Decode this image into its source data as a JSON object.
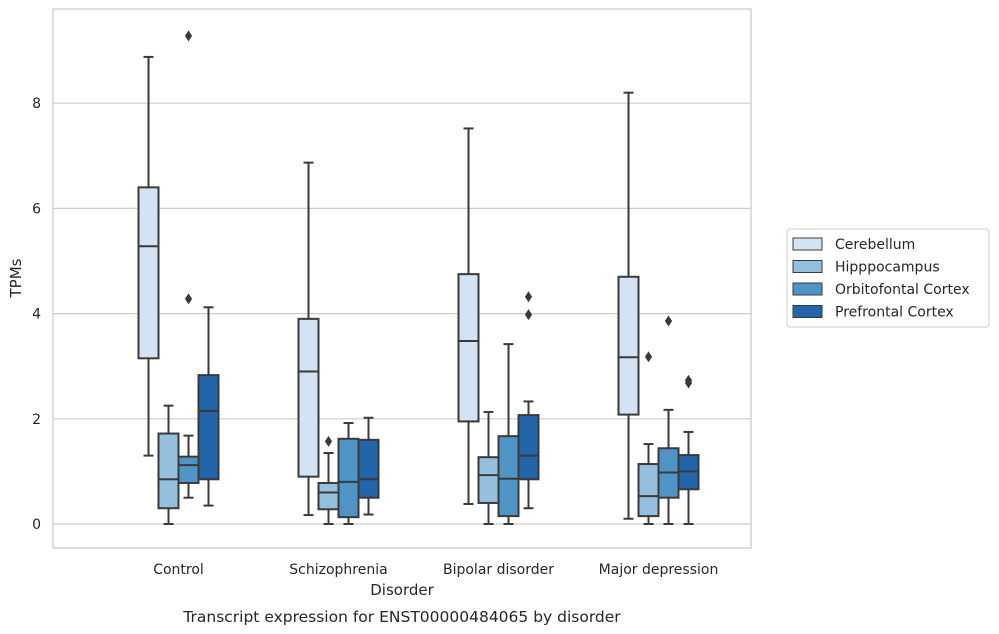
{
  "chart_data": {
    "type": "box",
    "title": "Transcript expression for ENST00000484065 by disorder",
    "xlabel": "Disorder",
    "ylabel": "TPMs",
    "ylim": [
      -0.45,
      9.8
    ],
    "yticks": [
      0,
      2,
      4,
      6,
      8
    ],
    "grid": "horizontal",
    "legend_position": "right",
    "categories": [
      "Control",
      "Schizophrenia",
      "Bipolar disorder",
      "Major depression"
    ],
    "series": [
      {
        "name": "Cerebellum",
        "color": "#d4e3f3",
        "boxes": [
          {
            "whisker_low": 1.3,
            "q1": 3.15,
            "median": 5.28,
            "q3": 6.4,
            "whisker_high": 8.88,
            "outliers": []
          },
          {
            "whisker_low": 0.17,
            "q1": 0.9,
            "median": 2.9,
            "q3": 3.9,
            "whisker_high": 6.87,
            "outliers": []
          },
          {
            "whisker_low": 0.38,
            "q1": 1.95,
            "median": 3.48,
            "q3": 4.75,
            "whisker_high": 7.52,
            "outliers": []
          },
          {
            "whisker_low": 0.1,
            "q1": 2.08,
            "median": 3.17,
            "q3": 4.7,
            "whisker_high": 8.2,
            "outliers": []
          }
        ]
      },
      {
        "name": "Hipppocampus",
        "color": "#94c0dd",
        "boxes": [
          {
            "whisker_low": 0.0,
            "q1": 0.3,
            "median": 0.85,
            "q3": 1.72,
            "whisker_high": 2.25,
            "outliers": []
          },
          {
            "whisker_low": 0.0,
            "q1": 0.28,
            "median": 0.6,
            "q3": 0.78,
            "whisker_high": 1.35,
            "outliers": [
              1.57
            ]
          },
          {
            "whisker_low": 0.0,
            "q1": 0.4,
            "median": 0.93,
            "q3": 1.27,
            "whisker_high": 2.13,
            "outliers": []
          },
          {
            "whisker_low": 0.0,
            "q1": 0.15,
            "median": 0.53,
            "q3": 1.14,
            "whisker_high": 1.52,
            "outliers": [
              3.18
            ]
          }
        ]
      },
      {
        "name": "Orbitofontal Cortex",
        "color": "#5094c6",
        "boxes": [
          {
            "whisker_low": 0.5,
            "q1": 0.78,
            "median": 1.12,
            "q3": 1.28,
            "whisker_high": 1.68,
            "outliers": [
              4.28,
              9.28
            ]
          },
          {
            "whisker_low": 0.0,
            "q1": 0.13,
            "median": 0.8,
            "q3": 1.62,
            "whisker_high": 1.92,
            "outliers": []
          },
          {
            "whisker_low": 0.0,
            "q1": 0.15,
            "median": 0.86,
            "q3": 1.67,
            "whisker_high": 3.42,
            "outliers": []
          },
          {
            "whisker_low": 0.0,
            "q1": 0.5,
            "median": 0.98,
            "q3": 1.44,
            "whisker_high": 2.17,
            "outliers": [
              3.86
            ]
          }
        ]
      },
      {
        "name": "Prefrontal Cortex",
        "color": "#2365a8",
        "boxes": [
          {
            "whisker_low": 0.35,
            "q1": 0.85,
            "median": 2.15,
            "q3": 2.83,
            "whisker_high": 4.12,
            "outliers": []
          },
          {
            "whisker_low": 0.18,
            "q1": 0.5,
            "median": 0.85,
            "q3": 1.6,
            "whisker_high": 2.02,
            "outliers": []
          },
          {
            "whisker_low": 0.3,
            "q1": 0.85,
            "median": 1.3,
            "q3": 2.07,
            "whisker_high": 2.33,
            "outliers": [
              3.98,
              4.32
            ]
          },
          {
            "whisker_low": 0.0,
            "q1": 0.66,
            "median": 1.0,
            "q3": 1.31,
            "whisker_high": 1.75,
            "outliers": [
              2.68,
              2.73
            ]
          }
        ]
      }
    ]
  }
}
